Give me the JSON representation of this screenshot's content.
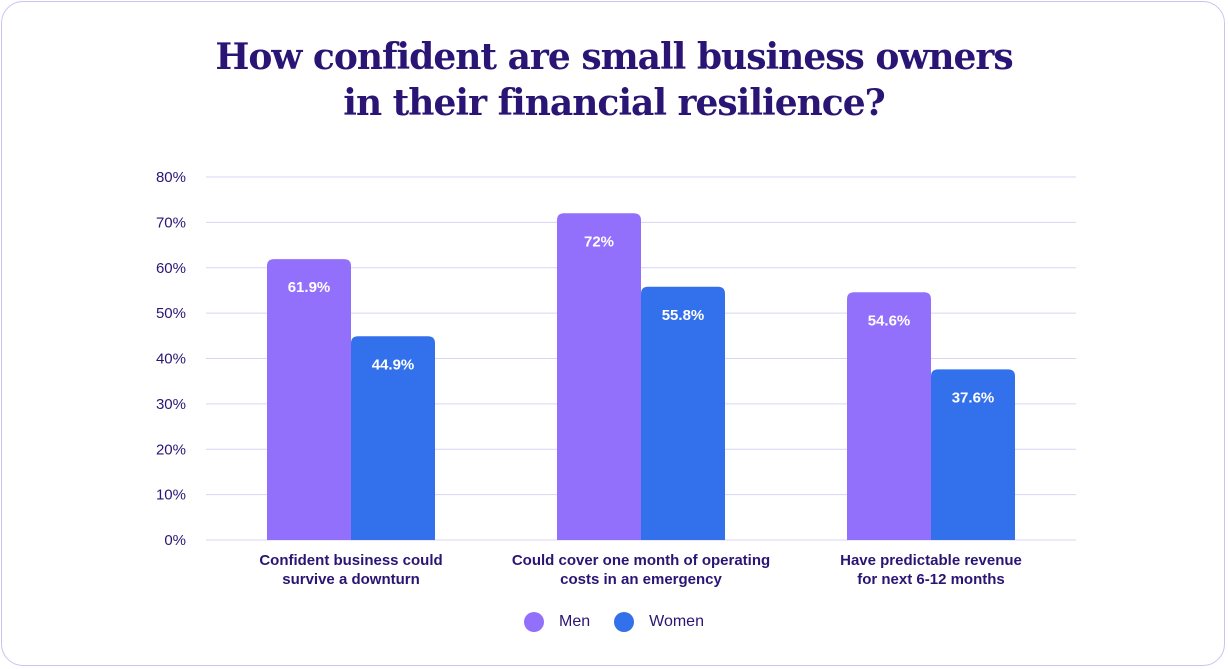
{
  "chart_data": {
    "type": "bar",
    "title": "How confident are small business owners in their financial resilience?",
    "title_lines": [
      "How confident are small business owners",
      "in their financial resilience?"
    ],
    "categories": [
      [
        "Confident business could",
        "survive a downturn"
      ],
      [
        "Could cover one month of operating",
        "costs in an emergency"
      ],
      [
        "Have predictable revenue",
        "for next 6-12 months"
      ]
    ],
    "series": [
      {
        "name": "Men",
        "color": "#9370fb",
        "values": [
          61.9,
          72,
          54.6
        ],
        "labels": [
          "61.9%",
          "72%",
          "54.6%"
        ]
      },
      {
        "name": "Women",
        "color": "#3370ec",
        "values": [
          44.9,
          55.8,
          37.6
        ],
        "labels": [
          "44.9%",
          "55.8%",
          "37.6%"
        ]
      }
    ],
    "ylim": [
      0,
      80
    ],
    "yticks": [
      "0%",
      "10%",
      "20%",
      "30%",
      "40%",
      "50%",
      "60%",
      "70%",
      "80%"
    ],
    "xlabel": "",
    "ylabel": "",
    "grid": true,
    "legend_position": "bottom-center",
    "grid_color": "#d9d4f5",
    "text_color": "#2a1574"
  }
}
